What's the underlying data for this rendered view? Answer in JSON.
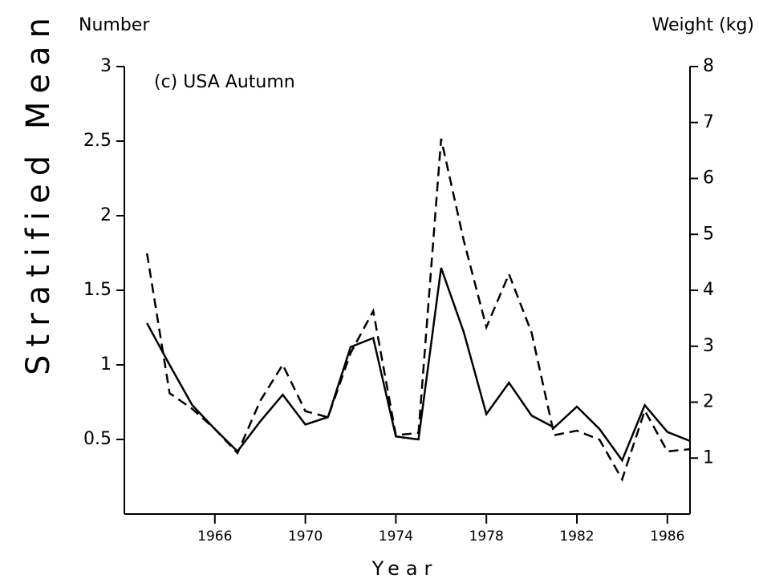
{
  "chart_data": {
    "type": "line",
    "title": "(c) USA Autumn",
    "ylabel": "Stratified Mean",
    "y_axis_title": "Number",
    "y2_axis_title": "Weight (kg)",
    "xlabel": "Year",
    "x": [
      1963,
      1964,
      1965,
      1966,
      1967,
      1968,
      1969,
      1970,
      1971,
      1972,
      1973,
      1974,
      1975,
      1976,
      1977,
      1978,
      1979,
      1980,
      1981,
      1982,
      1983,
      1984,
      1985,
      1986,
      1987
    ],
    "series": [
      {
        "name": "Number",
        "color": "#000000",
        "dash": "solid",
        "values": [
          1.28,
          1.0,
          0.73,
          0.57,
          0.42,
          0.62,
          0.8,
          0.6,
          0.65,
          1.12,
          1.18,
          0.52,
          0.5,
          1.65,
          1.22,
          0.67,
          0.88,
          0.66,
          0.58,
          0.72,
          0.57,
          0.36,
          0.73,
          0.55,
          0.49
        ]
      },
      {
        "name": "Weight (kg)",
        "color": "#000000",
        "dash": "dashed",
        "axis": "y2",
        "values": [
          4.66,
          2.16,
          1.88,
          1.52,
          1.09,
          2.02,
          2.67,
          1.84,
          1.73,
          2.88,
          3.63,
          1.41,
          1.45,
          6.71,
          4.89,
          3.34,
          4.29,
          3.24,
          1.41,
          1.49,
          1.33,
          0.62,
          1.85,
          1.12,
          1.16
        ]
      }
    ],
    "xlim": [
      1962,
      1987
    ],
    "xticks": [
      1966,
      1970,
      1974,
      1978,
      1982,
      1986
    ],
    "ylim": [
      0,
      3
    ],
    "yticks": [
      0.5,
      1,
      1.5,
      2,
      2.5,
      3
    ],
    "y2lim": [
      0,
      8
    ],
    "y2ticks": [
      1,
      2,
      3,
      4,
      5,
      6,
      7,
      8
    ],
    "grid": false
  }
}
